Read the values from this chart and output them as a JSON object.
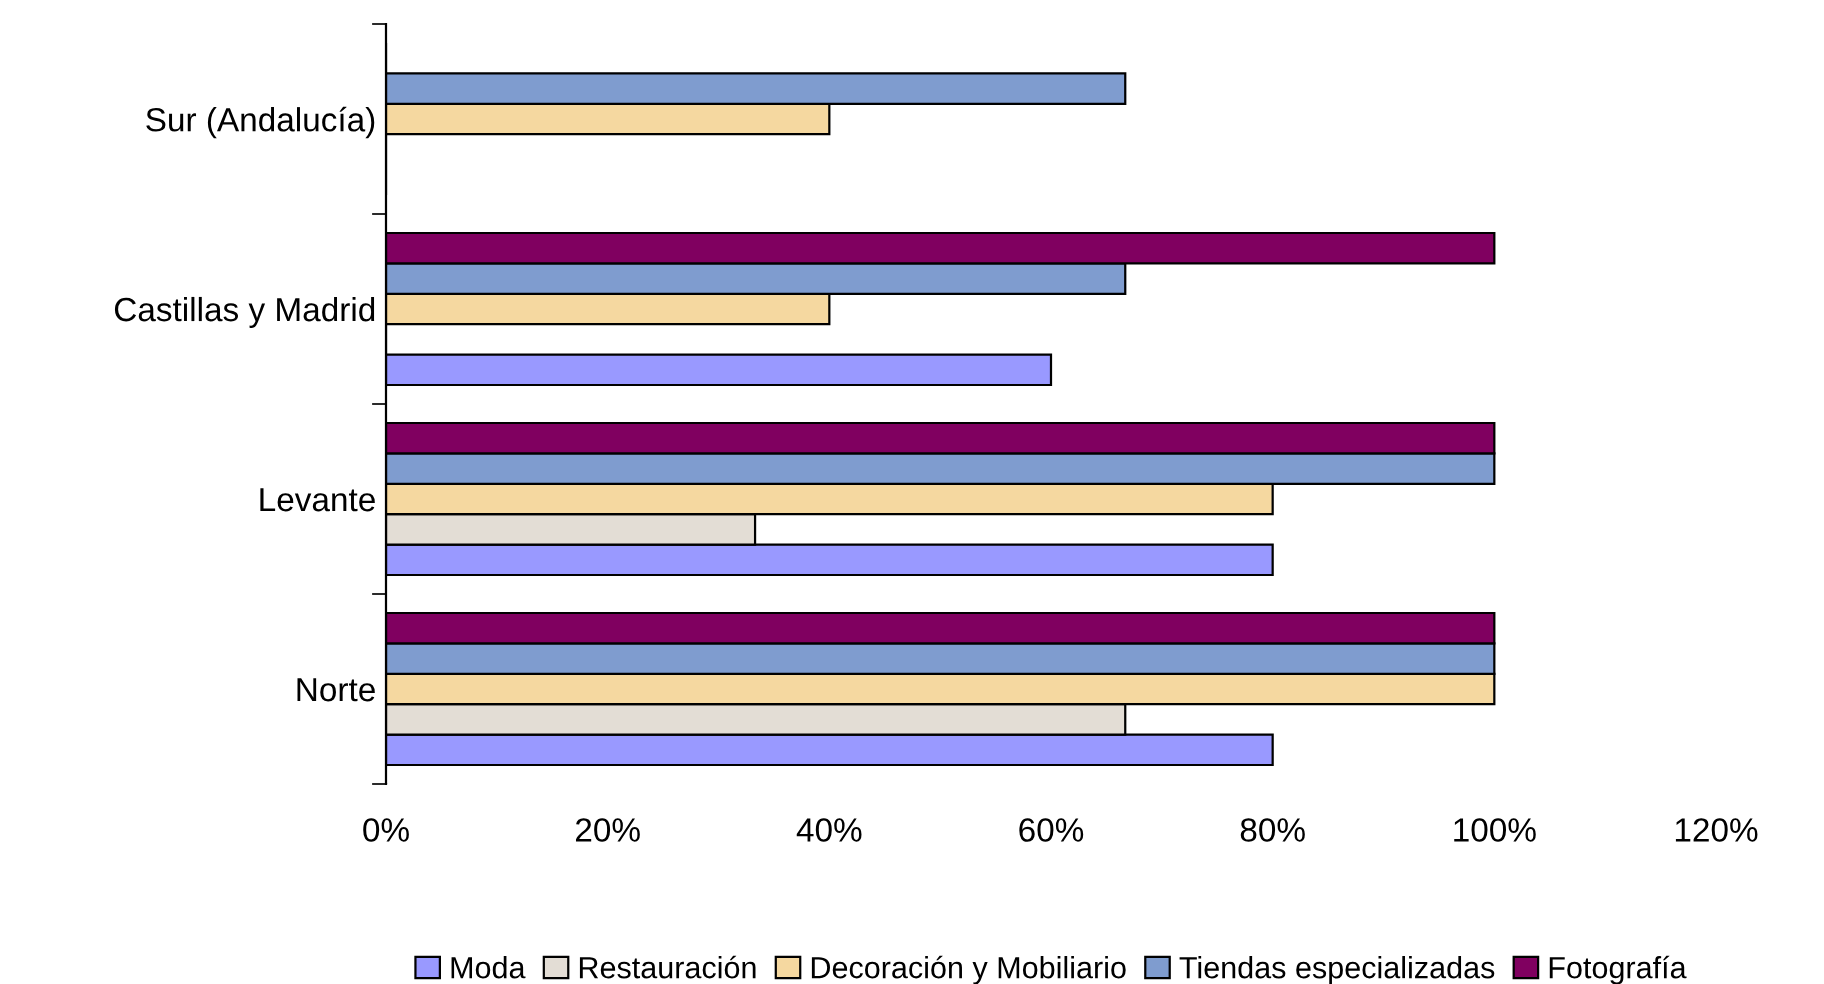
{
  "chart_data": {
    "type": "bar",
    "orientation": "horizontal",
    "categories": [
      "Sur (Andalucía)",
      "Castillas y Madrid",
      "Levante",
      "Norte"
    ],
    "series": [
      {
        "name": "Moda",
        "color": "#9999ff",
        "values": [
          0,
          60,
          80,
          80
        ]
      },
      {
        "name": "Restauración",
        "color": "#e3ddd5",
        "values": [
          0,
          0,
          33.3,
          66.7
        ]
      },
      {
        "name": "Decoración y Mobiliario",
        "color": "#f5d8a0",
        "values": [
          40,
          40,
          80,
          100
        ]
      },
      {
        "name": "Tiendas especializadas",
        "color": "#7f9ccf",
        "values": [
          66.7,
          66.7,
          100,
          100
        ]
      },
      {
        "name": "Fotografía",
        "color": "#800060",
        "values": [
          0,
          100,
          100,
          100
        ]
      }
    ],
    "xlim": [
      0,
      120
    ],
    "xticks": [
      {
        "value": 0,
        "label": "0%"
      },
      {
        "value": 20,
        "label": "20%"
      },
      {
        "value": 40,
        "label": "40%"
      },
      {
        "value": 60,
        "label": "60%"
      },
      {
        "value": 80,
        "label": "80%"
      },
      {
        "value": 100,
        "label": "100%"
      },
      {
        "value": 120,
        "label": "120%"
      }
    ],
    "grid": false,
    "legend": "bottom"
  }
}
